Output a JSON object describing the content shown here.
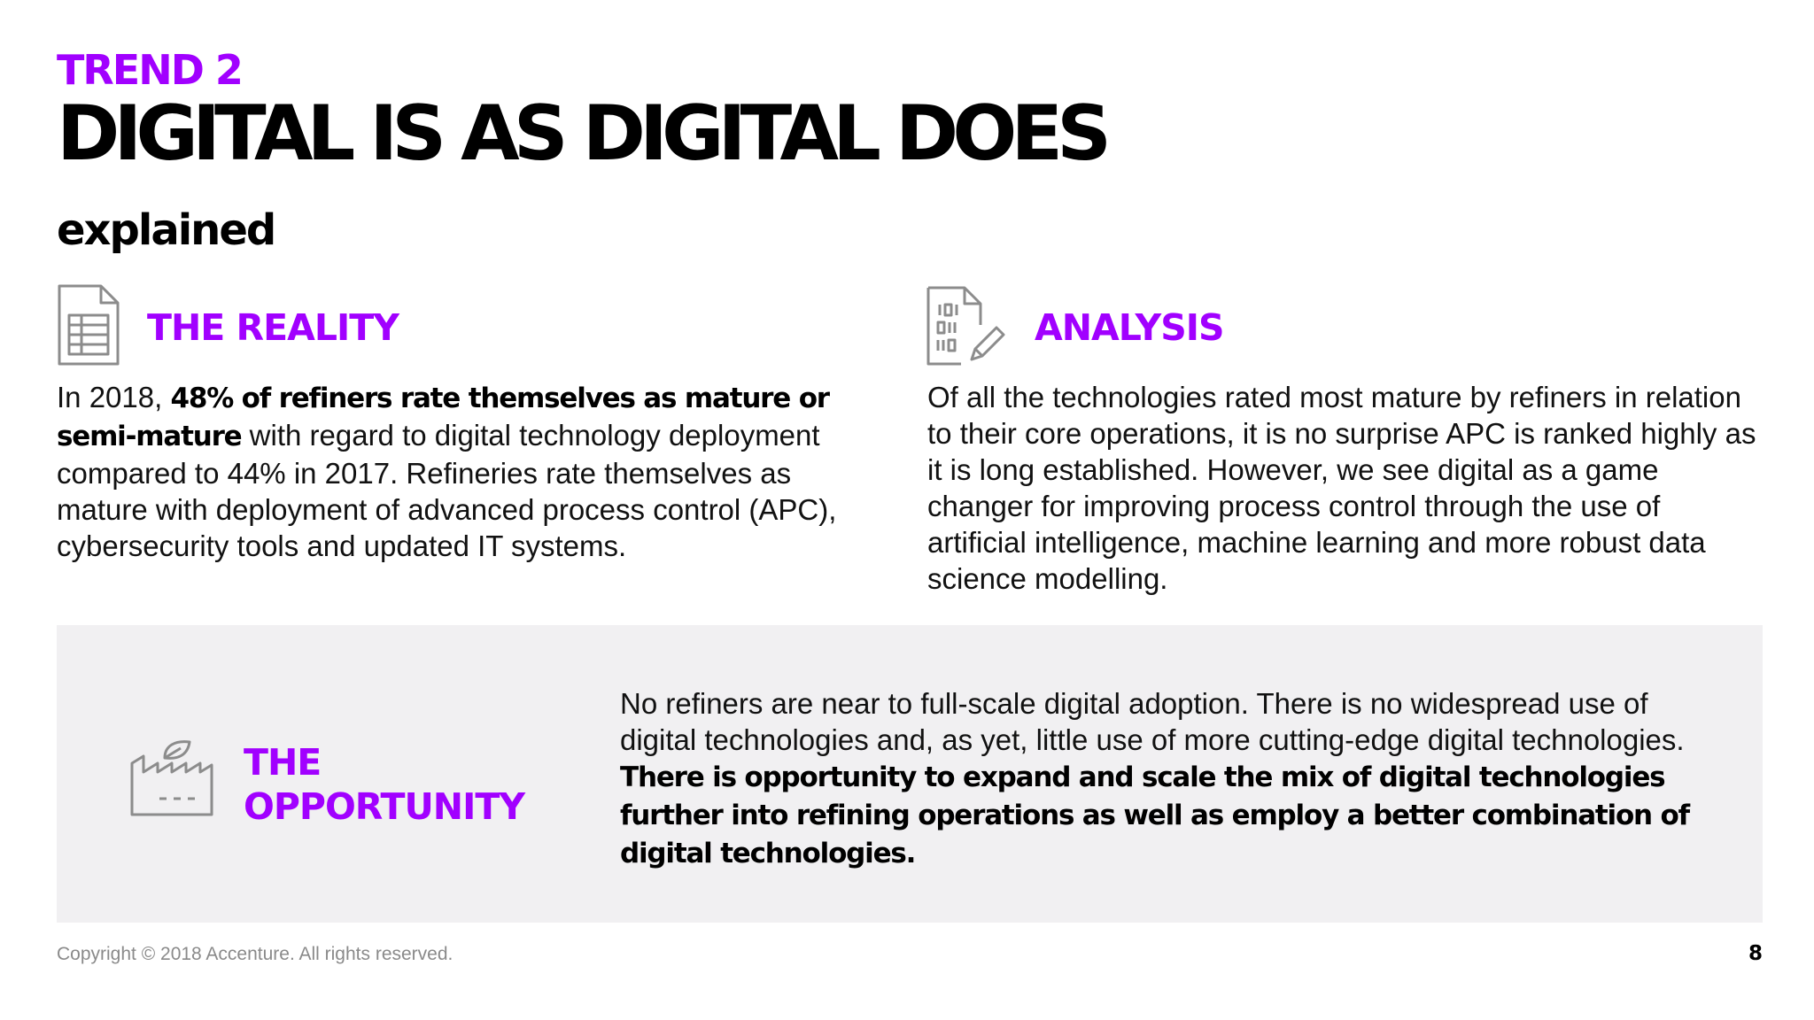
{
  "header": {
    "eyebrow": "TREND 2",
    "title": "DIGITAL IS AS DIGITAL DOES",
    "subtitle": "explained"
  },
  "reality": {
    "icon": "spreadsheet-document-icon",
    "heading": "THE REALITY",
    "text_intro": "In 2018, ",
    "text_bold": "48% of refiners rate themselves as mature or semi-mature",
    "text_rest": " with regard to digital technology deployment compared to 44% in 2017. Refineries rate themselves as mature with deployment of advanced process control (APC), cybersecurity tools and updated IT systems."
  },
  "analysis": {
    "icon": "binary-document-pencil-icon",
    "heading": "ANALYSIS",
    "text": "Of all the technologies rated most mature by refiners in relation to their core operations, it is no surprise APC is ranked highly as it is long established. However, we see digital as a game changer for improving process control through the use of artificial intelligence, machine learning and more robust data science modelling."
  },
  "opportunity": {
    "icon": "factory-leaf-icon",
    "heading_line1": "THE",
    "heading_line2": "OPPORTUNITY",
    "text_intro": "No refiners are near to full-scale digital adoption. There is no widespread use of digital technologies and, as yet, little use of more cutting-edge digital technologies. ",
    "text_bold": "There is opportunity to expand and scale the mix of digital technologies further into refining operations as well as employ a better combination of digital technologies."
  },
  "footer": {
    "copyright": "Copyright © 2018 Accenture. All rights reserved.",
    "page_number": "8"
  },
  "colors": {
    "accent": "#a100ff",
    "icon_gray": "#8c8c8c",
    "panel_bg": "#f1f0f2"
  }
}
